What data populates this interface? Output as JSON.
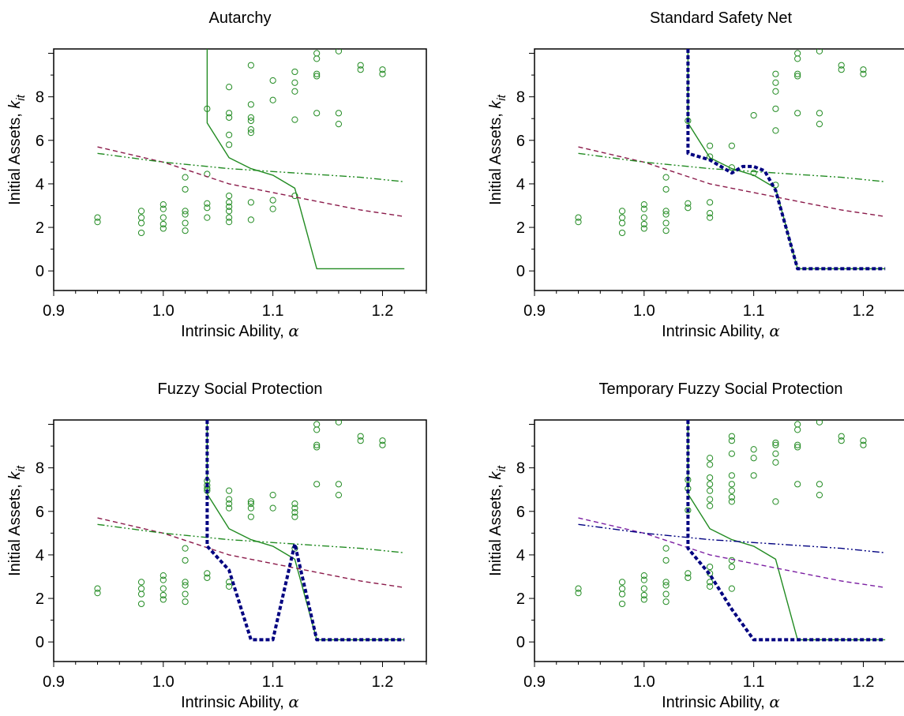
{
  "figure": {
    "xlabel_text": "Intrinsic Ability, ",
    "xlabel_symbol": "α",
    "ylabel_text": "Initial Assets, ",
    "ylabel_symbol": "k",
    "ylabel_subscript": "it",
    "colors": {
      "green": "#228b22",
      "maroon": "#8b1a4a",
      "navy": "#000080",
      "purple": "#7b1fa2"
    }
  },
  "chart_data": [
    {
      "type": "scatter",
      "title": "Autarchy",
      "xlim": [
        0.9,
        1.24
      ],
      "ylim": [
        -0.9,
        10.2
      ],
      "xticks": [
        "0.9",
        "1.0",
        "1.1",
        "1.2"
      ],
      "yticks": [
        "0",
        "2",
        "4",
        "6",
        "8"
      ],
      "points": [
        [
          0.94,
          2.45
        ],
        [
          0.94,
          2.25
        ],
        [
          0.98,
          2.75
        ],
        [
          0.98,
          2.45
        ],
        [
          0.98,
          2.2
        ],
        [
          0.98,
          1.75
        ],
        [
          1.0,
          3.05
        ],
        [
          1.0,
          2.85
        ],
        [
          1.0,
          2.45
        ],
        [
          1.0,
          2.15
        ],
        [
          1.0,
          1.95
        ],
        [
          1.02,
          4.3
        ],
        [
          1.02,
          3.75
        ],
        [
          1.02,
          2.75
        ],
        [
          1.02,
          2.6
        ],
        [
          1.02,
          2.2
        ],
        [
          1.02,
          1.85
        ],
        [
          1.04,
          7.45
        ],
        [
          1.04,
          4.45
        ],
        [
          1.04,
          3.1
        ],
        [
          1.04,
          2.9
        ],
        [
          1.04,
          2.45
        ],
        [
          1.06,
          8.45
        ],
        [
          1.06,
          7.25
        ],
        [
          1.06,
          7.05
        ],
        [
          1.06,
          6.25
        ],
        [
          1.06,
          5.8
        ],
        [
          1.06,
          3.45
        ],
        [
          1.06,
          3.15
        ],
        [
          1.06,
          2.95
        ],
        [
          1.06,
          2.75
        ],
        [
          1.06,
          2.45
        ],
        [
          1.06,
          2.25
        ],
        [
          1.08,
          9.45
        ],
        [
          1.08,
          7.65
        ],
        [
          1.08,
          7.05
        ],
        [
          1.08,
          6.9
        ],
        [
          1.08,
          6.5
        ],
        [
          1.08,
          6.35
        ],
        [
          1.08,
          3.15
        ],
        [
          1.08,
          2.35
        ],
        [
          1.1,
          8.75
        ],
        [
          1.1,
          7.85
        ],
        [
          1.1,
          3.25
        ],
        [
          1.1,
          2.85
        ],
        [
          1.12,
          9.15
        ],
        [
          1.12,
          8.65
        ],
        [
          1.12,
          8.25
        ],
        [
          1.12,
          6.95
        ],
        [
          1.12,
          3.45
        ],
        [
          1.14,
          10.0
        ],
        [
          1.14,
          9.75
        ],
        [
          1.14,
          9.05
        ],
        [
          1.14,
          8.95
        ],
        [
          1.14,
          7.25
        ],
        [
          1.16,
          10.1
        ],
        [
          1.16,
          7.25
        ],
        [
          1.16,
          6.75
        ],
        [
          1.18,
          9.45
        ],
        [
          1.18,
          9.25
        ],
        [
          1.2,
          9.25
        ],
        [
          1.2,
          9.05
        ]
      ],
      "series": [
        {
          "color": "green",
          "style": "solid",
          "x": [
            1.04,
            1.04,
            1.06,
            1.08,
            1.1,
            1.12,
            1.14,
            1.22
          ],
          "y": [
            10.2,
            6.8,
            5.2,
            4.7,
            4.4,
            3.8,
            0.1,
            0.1
          ]
        },
        {
          "color": "maroon",
          "style": "dash",
          "x": [
            0.94,
            1.0,
            1.06,
            1.12,
            1.18,
            1.22
          ],
          "y": [
            5.7,
            5.0,
            4.0,
            3.4,
            2.8,
            2.5
          ]
        },
        {
          "color": "green",
          "style": "dashdotdot",
          "x": [
            0.94,
            1.0,
            1.06,
            1.12,
            1.18,
            1.22
          ],
          "y": [
            5.4,
            5.0,
            4.7,
            4.5,
            4.3,
            4.1
          ]
        }
      ]
    },
    {
      "type": "scatter",
      "title": "Standard Safety Net",
      "xlim": [
        0.9,
        1.24
      ],
      "ylim": [
        -0.9,
        10.2
      ],
      "xticks": [
        "0.9",
        "1.0",
        "1.1",
        "1.2"
      ],
      "yticks": [
        "0",
        "2",
        "4",
        "6",
        "8"
      ],
      "points": [
        [
          0.94,
          2.45
        ],
        [
          0.94,
          2.25
        ],
        [
          0.98,
          2.75
        ],
        [
          0.98,
          2.45
        ],
        [
          0.98,
          2.2
        ],
        [
          0.98,
          1.75
        ],
        [
          1.0,
          3.05
        ],
        [
          1.0,
          2.85
        ],
        [
          1.0,
          2.45
        ],
        [
          1.0,
          2.15
        ],
        [
          1.0,
          1.95
        ],
        [
          1.02,
          4.3
        ],
        [
          1.02,
          3.75
        ],
        [
          1.02,
          2.75
        ],
        [
          1.02,
          2.6
        ],
        [
          1.02,
          2.2
        ],
        [
          1.02,
          1.85
        ],
        [
          1.04,
          6.9
        ],
        [
          1.04,
          3.1
        ],
        [
          1.04,
          2.9
        ],
        [
          1.06,
          5.75
        ],
        [
          1.06,
          5.25
        ],
        [
          1.06,
          3.15
        ],
        [
          1.06,
          2.65
        ],
        [
          1.06,
          2.45
        ],
        [
          1.08,
          5.75
        ],
        [
          1.08,
          4.75
        ],
        [
          1.1,
          7.15
        ],
        [
          1.1,
          4.5
        ],
        [
          1.12,
          9.05
        ],
        [
          1.12,
          8.65
        ],
        [
          1.12,
          8.25
        ],
        [
          1.12,
          7.45
        ],
        [
          1.12,
          6.45
        ],
        [
          1.12,
          3.95
        ],
        [
          1.14,
          10.0
        ],
        [
          1.14,
          9.75
        ],
        [
          1.14,
          9.05
        ],
        [
          1.14,
          8.95
        ],
        [
          1.14,
          7.25
        ],
        [
          1.16,
          10.1
        ],
        [
          1.16,
          7.25
        ],
        [
          1.16,
          6.75
        ],
        [
          1.18,
          9.45
        ],
        [
          1.18,
          9.25
        ],
        [
          1.2,
          9.25
        ],
        [
          1.2,
          9.05
        ]
      ],
      "series": [
        {
          "color": "green",
          "style": "solid",
          "x": [
            1.04,
            1.04,
            1.06,
            1.08,
            1.1,
            1.12,
            1.14,
            1.22
          ],
          "y": [
            10.2,
            6.8,
            5.2,
            4.7,
            4.4,
            3.8,
            0.1,
            0.1
          ]
        },
        {
          "color": "maroon",
          "style": "dash",
          "x": [
            0.94,
            1.0,
            1.06,
            1.12,
            1.18,
            1.22
          ],
          "y": [
            5.7,
            5.0,
            4.0,
            3.4,
            2.8,
            2.5
          ]
        },
        {
          "color": "green",
          "style": "dashdotdot",
          "x": [
            0.94,
            1.0,
            1.06,
            1.12,
            1.18,
            1.22
          ],
          "y": [
            5.4,
            5.0,
            4.7,
            4.5,
            4.3,
            4.1
          ]
        },
        {
          "color": "navy",
          "style": "bolddot",
          "x": [
            1.04,
            1.04,
            1.06,
            1.08,
            1.09,
            1.1,
            1.11,
            1.12,
            1.14,
            1.22
          ],
          "y": [
            10.2,
            5.4,
            5.1,
            4.5,
            4.8,
            4.8,
            4.6,
            3.7,
            0.1,
            0.1
          ]
        }
      ]
    },
    {
      "type": "scatter",
      "title": "Fuzzy Social Protection",
      "xlim": [
        0.9,
        1.24
      ],
      "ylim": [
        -0.9,
        10.2
      ],
      "xticks": [
        "0.9",
        "1.0",
        "1.1",
        "1.2"
      ],
      "yticks": [
        "0",
        "2",
        "4",
        "6",
        "8"
      ],
      "points": [
        [
          0.94,
          2.45
        ],
        [
          0.94,
          2.25
        ],
        [
          0.98,
          2.75
        ],
        [
          0.98,
          2.45
        ],
        [
          0.98,
          2.2
        ],
        [
          0.98,
          1.75
        ],
        [
          1.0,
          3.05
        ],
        [
          1.0,
          2.85
        ],
        [
          1.0,
          2.45
        ],
        [
          1.0,
          2.15
        ],
        [
          1.0,
          1.95
        ],
        [
          1.02,
          4.3
        ],
        [
          1.02,
          3.75
        ],
        [
          1.02,
          2.75
        ],
        [
          1.02,
          2.6
        ],
        [
          1.02,
          2.2
        ],
        [
          1.02,
          1.85
        ],
        [
          1.04,
          7.4
        ],
        [
          1.04,
          7.2
        ],
        [
          1.04,
          7.05
        ],
        [
          1.04,
          6.95
        ],
        [
          1.04,
          3.15
        ],
        [
          1.04,
          2.95
        ],
        [
          1.06,
          6.95
        ],
        [
          1.06,
          6.55
        ],
        [
          1.06,
          6.35
        ],
        [
          1.06,
          6.15
        ],
        [
          1.06,
          2.75
        ],
        [
          1.06,
          2.55
        ],
        [
          1.08,
          6.45
        ],
        [
          1.08,
          6.35
        ],
        [
          1.08,
          6.15
        ],
        [
          1.08,
          5.75
        ],
        [
          1.1,
          6.75
        ],
        [
          1.1,
          6.15
        ],
        [
          1.12,
          6.35
        ],
        [
          1.12,
          6.15
        ],
        [
          1.12,
          5.95
        ],
        [
          1.12,
          5.75
        ],
        [
          1.12,
          4.3
        ],
        [
          1.14,
          10.0
        ],
        [
          1.14,
          9.75
        ],
        [
          1.14,
          9.05
        ],
        [
          1.14,
          8.95
        ],
        [
          1.14,
          7.25
        ],
        [
          1.16,
          10.1
        ],
        [
          1.16,
          7.25
        ],
        [
          1.16,
          6.75
        ],
        [
          1.18,
          9.45
        ],
        [
          1.18,
          9.25
        ],
        [
          1.2,
          9.25
        ],
        [
          1.2,
          9.05
        ]
      ],
      "series": [
        {
          "color": "green",
          "style": "solid",
          "x": [
            1.04,
            1.04,
            1.06,
            1.08,
            1.1,
            1.12,
            1.14,
            1.22
          ],
          "y": [
            10.2,
            6.8,
            5.2,
            4.7,
            4.4,
            3.8,
            0.1,
            0.1
          ]
        },
        {
          "color": "maroon",
          "style": "dash",
          "x": [
            0.94,
            1.0,
            1.06,
            1.12,
            1.18,
            1.22
          ],
          "y": [
            5.7,
            5.0,
            4.0,
            3.4,
            2.8,
            2.5
          ]
        },
        {
          "color": "green",
          "style": "dashdotdot",
          "x": [
            0.94,
            1.0,
            1.06,
            1.12,
            1.18,
            1.22
          ],
          "y": [
            5.4,
            5.0,
            4.7,
            4.5,
            4.3,
            4.1
          ]
        },
        {
          "color": "navy",
          "style": "bolddot",
          "x": [
            1.04,
            1.04,
            1.06,
            1.08,
            1.1,
            1.12,
            1.14,
            1.22
          ],
          "y": [
            10.2,
            4.4,
            3.3,
            0.1,
            0.1,
            4.5,
            0.1,
            0.1
          ]
        }
      ]
    },
    {
      "type": "scatter",
      "title": "Temporary Fuzzy Social Protection",
      "xlim": [
        0.9,
        1.24
      ],
      "ylim": [
        -0.9,
        10.2
      ],
      "xticks": [
        "0.9",
        "1.0",
        "1.1",
        "1.2"
      ],
      "yticks": [
        "0",
        "2",
        "4",
        "6",
        "8"
      ],
      "points": [
        [
          0.94,
          2.45
        ],
        [
          0.94,
          2.25
        ],
        [
          0.98,
          2.75
        ],
        [
          0.98,
          2.45
        ],
        [
          0.98,
          2.2
        ],
        [
          0.98,
          1.75
        ],
        [
          1.0,
          3.05
        ],
        [
          1.0,
          2.85
        ],
        [
          1.0,
          2.45
        ],
        [
          1.0,
          2.15
        ],
        [
          1.0,
          1.95
        ],
        [
          1.02,
          4.3
        ],
        [
          1.02,
          3.75
        ],
        [
          1.02,
          2.75
        ],
        [
          1.02,
          2.6
        ],
        [
          1.02,
          2.2
        ],
        [
          1.02,
          1.85
        ],
        [
          1.04,
          7.45
        ],
        [
          1.04,
          7.05
        ],
        [
          1.04,
          6.05
        ],
        [
          1.04,
          3.15
        ],
        [
          1.04,
          2.95
        ],
        [
          1.06,
          8.45
        ],
        [
          1.06,
          8.15
        ],
        [
          1.06,
          7.55
        ],
        [
          1.06,
          7.25
        ],
        [
          1.06,
          6.95
        ],
        [
          1.06,
          6.55
        ],
        [
          1.06,
          6.25
        ],
        [
          1.06,
          3.45
        ],
        [
          1.06,
          3.15
        ],
        [
          1.06,
          2.75
        ],
        [
          1.06,
          2.55
        ],
        [
          1.08,
          9.45
        ],
        [
          1.08,
          9.25
        ],
        [
          1.08,
          8.65
        ],
        [
          1.08,
          7.65
        ],
        [
          1.08,
          7.25
        ],
        [
          1.08,
          6.95
        ],
        [
          1.08,
          6.65
        ],
        [
          1.08,
          6.45
        ],
        [
          1.08,
          3.75
        ],
        [
          1.08,
          3.45
        ],
        [
          1.08,
          2.45
        ],
        [
          1.1,
          8.85
        ],
        [
          1.1,
          8.45
        ],
        [
          1.1,
          7.65
        ],
        [
          1.12,
          9.15
        ],
        [
          1.12,
          9.05
        ],
        [
          1.12,
          8.65
        ],
        [
          1.12,
          8.25
        ],
        [
          1.12,
          6.45
        ],
        [
          1.14,
          10.0
        ],
        [
          1.14,
          9.75
        ],
        [
          1.14,
          9.05
        ],
        [
          1.14,
          8.95
        ],
        [
          1.14,
          7.25
        ],
        [
          1.16,
          10.1
        ],
        [
          1.16,
          7.25
        ],
        [
          1.16,
          6.75
        ],
        [
          1.18,
          9.45
        ],
        [
          1.18,
          9.25
        ],
        [
          1.2,
          9.25
        ],
        [
          1.2,
          9.05
        ]
      ],
      "series": [
        {
          "color": "green",
          "style": "solid",
          "x": [
            1.04,
            1.04,
            1.06,
            1.08,
            1.1,
            1.12,
            1.14,
            1.22
          ],
          "y": [
            10.2,
            6.8,
            5.2,
            4.7,
            4.4,
            3.8,
            0.1,
            0.1
          ]
        },
        {
          "color": "purple",
          "style": "dash",
          "x": [
            0.94,
            1.0,
            1.06,
            1.12,
            1.18,
            1.22
          ],
          "y": [
            5.7,
            5.0,
            4.0,
            3.4,
            2.8,
            2.5
          ]
        },
        {
          "color": "navy",
          "style": "dashdotdot",
          "x": [
            0.94,
            1.0,
            1.06,
            1.12,
            1.18,
            1.22
          ],
          "y": [
            5.4,
            5.0,
            4.7,
            4.5,
            4.3,
            4.1
          ]
        },
        {
          "color": "navy",
          "style": "bolddot",
          "x": [
            1.04,
            1.04,
            1.06,
            1.08,
            1.1,
            1.22
          ],
          "y": [
            10.2,
            4.3,
            3.1,
            1.5,
            0.1,
            0.1
          ]
        }
      ]
    }
  ]
}
